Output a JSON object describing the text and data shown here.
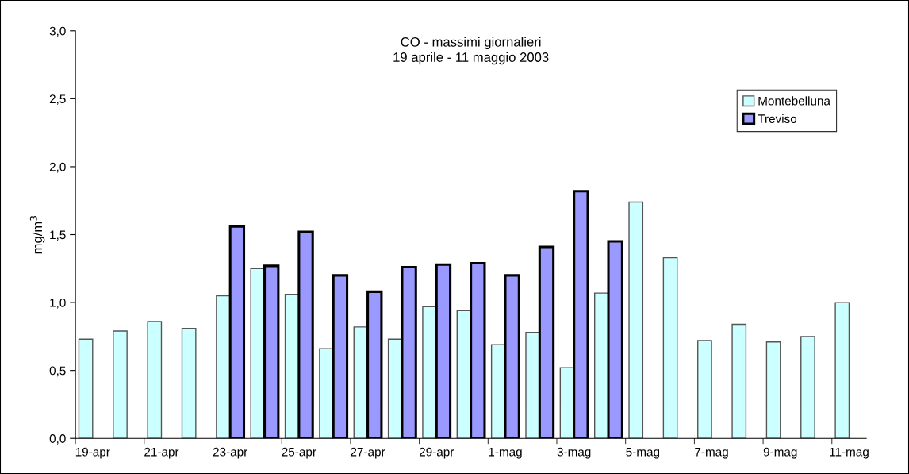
{
  "chart_data": {
    "type": "bar",
    "title": "CO - massimi giornalieri\n19 aprile - 11 maggio 2003",
    "ylabel": "mg/m$^{3}$",
    "categories": [
      "19-apr",
      null,
      "21-apr",
      null,
      "23-apr",
      null,
      "25-apr",
      null,
      "27-apr",
      null,
      "29-apr",
      null,
      "1-mag",
      null,
      "3-mag",
      null,
      "5-mag",
      null,
      "7-mag",
      null,
      "9-mag",
      null,
      "11-mag"
    ],
    "series": [
      {
        "name": "Montebelluna",
        "color": "#ccffff",
        "values": [
          0.73,
          0.79,
          0.86,
          0.81,
          1.05,
          1.25,
          1.06,
          0.66,
          0.82,
          0.73,
          0.97,
          0.94,
          0.69,
          0.78,
          0.52,
          1.07,
          1.74,
          1.33,
          0.72,
          0.84,
          0.71,
          0.75,
          1.0
        ]
      },
      {
        "name": "Treviso",
        "color": "#9999ff",
        "values": [
          null,
          null,
          null,
          null,
          1.56,
          1.27,
          1.52,
          1.2,
          1.08,
          1.26,
          1.28,
          1.29,
          1.2,
          1.41,
          1.82,
          1.45,
          null,
          null,
          null,
          null,
          null,
          null,
          null
        ]
      }
    ],
    "ylim": [
      0,
      3
    ],
    "yticks": [
      {
        "value": 0,
        "label": "0,0"
      },
      {
        "value": 0.5,
        "label": "0,5"
      },
      {
        "value": 1,
        "label": "1,0"
      },
      {
        "value": 1.5,
        "label": "1,5"
      },
      {
        "value": 2,
        "label": "2,0"
      },
      {
        "value": 2.5,
        "label": "2,5"
      },
      {
        "value": 3,
        "label": "3,0"
      }
    ],
    "legend": "top right",
    "grid": false
  }
}
